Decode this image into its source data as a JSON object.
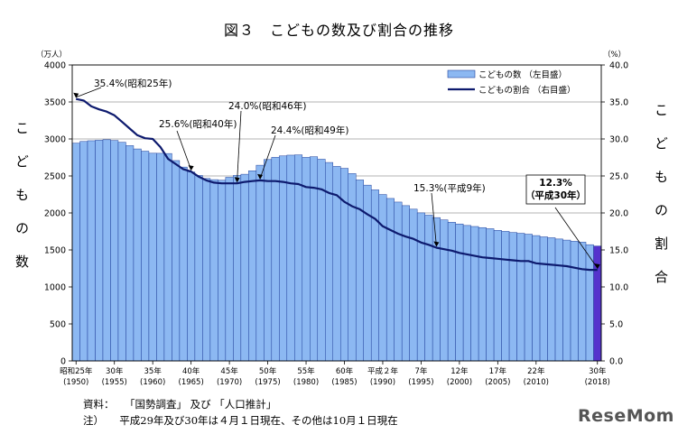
{
  "chart_data": {
    "type": "bar+line",
    "title": "図３　こどもの数及び割合の推移",
    "left_axis_label": "こどもの数",
    "left_unit": "（万人）",
    "right_axis_label": "こどもの割合",
    "right_unit": "（%）",
    "ylim_left": [
      0,
      4000
    ],
    "ylim_right": [
      0,
      40
    ],
    "left_ticks": [
      "0",
      "500",
      "1000",
      "1500",
      "2000",
      "2500",
      "3000",
      "3500",
      "4000"
    ],
    "right_ticks": [
      "0.0",
      "5.0",
      "10.0",
      "15.0",
      "20.0",
      "25.0",
      "30.0",
      "35.0",
      "40.0"
    ],
    "legend": {
      "bar": "こどもの数 （左目盛）",
      "line": "こどもの割合 （右目盛）",
      "placement": "top-right"
    },
    "years": [
      1950,
      1951,
      1952,
      1953,
      1954,
      1955,
      1956,
      1957,
      1958,
      1959,
      1960,
      1961,
      1962,
      1963,
      1964,
      1965,
      1966,
      1967,
      1968,
      1969,
      1970,
      1971,
      1972,
      1973,
      1974,
      1975,
      1976,
      1977,
      1978,
      1979,
      1980,
      1981,
      1982,
      1983,
      1984,
      1985,
      1986,
      1987,
      1988,
      1989,
      1990,
      1991,
      1992,
      1993,
      1994,
      1995,
      1996,
      1997,
      1998,
      1999,
      2000,
      2001,
      2002,
      2003,
      2004,
      2005,
      2006,
      2007,
      2008,
      2009,
      2010,
      2011,
      2012,
      2013,
      2014,
      2015,
      2016,
      2017,
      2018
    ],
    "counts": [
      2943,
      2966,
      2976,
      2983,
      2990,
      2980,
      2955,
      2910,
      2865,
      2835,
      2807,
      2806,
      2803,
      2708,
      2620,
      2553,
      2507,
      2466,
      2450,
      2442,
      2482,
      2507,
      2523,
      2570,
      2645,
      2722,
      2752,
      2771,
      2781,
      2785,
      2751,
      2760,
      2726,
      2682,
      2629,
      2603,
      2532,
      2446,
      2376,
      2312,
      2249,
      2196,
      2147,
      2099,
      2051,
      2001,
      1970,
      1937,
      1906,
      1874,
      1851,
      1831,
      1817,
      1802,
      1787,
      1765,
      1751,
      1736,
      1725,
      1713,
      1694,
      1677,
      1665,
      1648,
      1633,
      1617,
      1605,
      1571,
      1553
    ],
    "ratios": [
      35.4,
      35.2,
      34.4,
      34.0,
      33.7,
      33.2,
      32.3,
      31.4,
      30.5,
      30.1,
      30.0,
      28.9,
      27.3,
      26.6,
      25.9,
      25.6,
      24.9,
      24.4,
      24.1,
      24.0,
      24.0,
      24.0,
      24.2,
      24.3,
      24.4,
      24.3,
      24.3,
      24.2,
      24.0,
      23.9,
      23.5,
      23.4,
      23.2,
      22.7,
      22.4,
      21.5,
      20.9,
      20.5,
      19.8,
      19.2,
      18.2,
      17.7,
      17.2,
      16.8,
      16.5,
      16.0,
      15.7,
      15.3,
      15.1,
      14.9,
      14.6,
      14.4,
      14.2,
      14.0,
      13.9,
      13.8,
      13.7,
      13.6,
      13.5,
      13.5,
      13.2,
      13.1,
      13.0,
      12.9,
      12.8,
      12.6,
      12.4,
      12.3,
      12.3
    ],
    "x_ticks": [
      {
        "year": 1950,
        "top": "昭和25年",
        "bottom": "(1950)"
      },
      {
        "year": 1955,
        "top": "30年",
        "bottom": "(1955)"
      },
      {
        "year": 1960,
        "top": "35年",
        "bottom": "(1960)"
      },
      {
        "year": 1965,
        "top": "40年",
        "bottom": "(1965)"
      },
      {
        "year": 1970,
        "top": "45年",
        "bottom": "(1970)"
      },
      {
        "year": 1975,
        "top": "50年",
        "bottom": "(1975)"
      },
      {
        "year": 1980,
        "top": "55年",
        "bottom": "(1980)"
      },
      {
        "year": 1985,
        "top": "60年",
        "bottom": "(1985)"
      },
      {
        "year": 1990,
        "top": "平成２年",
        "bottom": "(1990)"
      },
      {
        "year": 1995,
        "top": "7年",
        "bottom": "(1995)"
      },
      {
        "year": 2000,
        "top": "12年",
        "bottom": "(2000)"
      },
      {
        "year": 2005,
        "top": "17年",
        "bottom": "(2005)"
      },
      {
        "year": 2010,
        "top": "22年",
        "bottom": "(2010)"
      },
      {
        "year": 2018,
        "top": "30年",
        "bottom": "(2018)"
      }
    ],
    "annotations": [
      {
        "year": 1950,
        "value": 35.4,
        "text": "35.4%(昭和25年)"
      },
      {
        "year": 1965,
        "value": 25.6,
        "text": "25.6%(昭和40年)"
      },
      {
        "year": 1971,
        "value": 24.0,
        "text": "24.0%(昭和46年)"
      },
      {
        "year": 1974,
        "value": 24.4,
        "text": "24.4%(昭和49年)"
      },
      {
        "year": 1997,
        "value": 15.3,
        "text": "15.3%(平成9年)"
      },
      {
        "year": 2018,
        "value": 12.3,
        "text": "12.3%\n（平成30年）",
        "boxed": true
      }
    ],
    "colors": {
      "bar": "#8cb8f2",
      "bar_stroke": "#1f3f9a",
      "highlight_bar": "#5533cc",
      "line": "#0d1a6e",
      "grid": "#9a9a9a"
    }
  },
  "notes": {
    "source": "資料：　　「国勢調査」 及び 「人口推計」",
    "note": "注）　　平成29年及び30年は４月１日現在、その他は10月１日現在"
  },
  "logo": "ReseMom"
}
